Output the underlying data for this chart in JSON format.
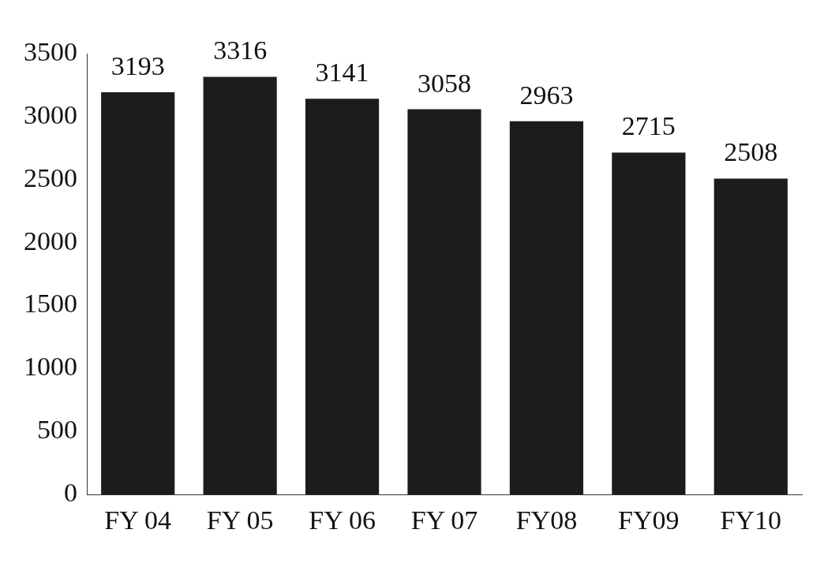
{
  "chart_data": {
    "type": "bar",
    "categories": [
      "FY 04",
      "FY 05",
      "FY 06",
      "FY 07",
      "FY08",
      "FY09",
      "FY10"
    ],
    "values": [
      3193,
      3316,
      3141,
      3058,
      2963,
      2715,
      2508
    ],
    "color": "#1c1c1c",
    "ylim": [
      0,
      3500
    ],
    "yticks": [
      0,
      500,
      1000,
      1500,
      2000,
      2500,
      3000,
      3500
    ],
    "grid": false,
    "legend": false,
    "data_labels": true
  }
}
